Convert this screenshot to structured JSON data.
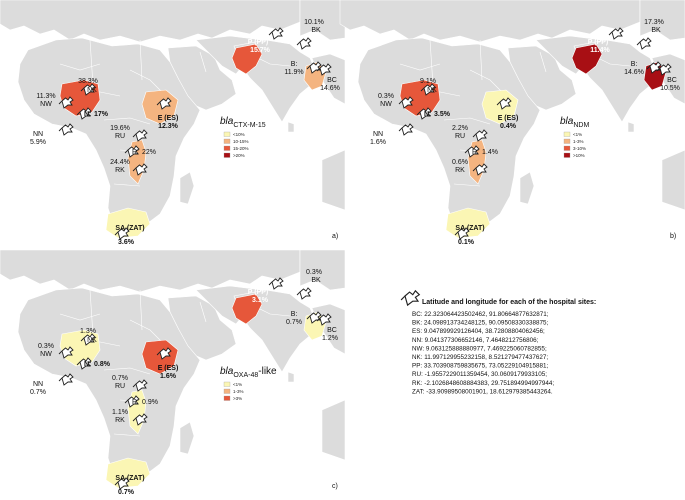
{
  "colors": {
    "land": "#dcdcdc",
    "cat1": "#fbf6b4",
    "cat2": "#f4b480",
    "cat3": "#e6573a",
    "cat4": "#a80f14"
  },
  "panels": [
    {
      "id": "a",
      "panel_label": "a)",
      "gene_prefix": "bla",
      "gene_sub": "CTX-M-15",
      "legend": [
        "<10%",
        "10-15%",
        "15-20%",
        ">20%"
      ],
      "regions": {
        "nigeria": "cat3",
        "ethiopia": "cat2",
        "pakistan": "cat3",
        "bangladesh": "cat2",
        "rwanda": "cat2",
        "southafrica": "cat1"
      },
      "sites": {
        "NK": {
          "pct": "38.3%",
          "code": "NK"
        },
        "NW": {
          "pct": "11.3%",
          "code": "NW"
        },
        "N": {
          "pct": "17%",
          "code": "N:"
        },
        "NN": {
          "pct": "5.9%",
          "code": "NN"
        },
        "E": {
          "pct": "12.3%",
          "code": "E (ES)"
        },
        "RU": {
          "pct": "19.6%",
          "code": "RU"
        },
        "R": {
          "pct": "22%",
          "code": "R:"
        },
        "RK": {
          "pct": "24.4%",
          "code": "RK"
        },
        "SA": {
          "pct": "3.6%",
          "code": "SA (ZAT)"
        },
        "P": {
          "pct": "15.7%",
          "code": "P (PP)"
        },
        "BK": {
          "pct": "10.1%",
          "code": "BK"
        },
        "B": {
          "pct": "11.9%",
          "code": "B:"
        },
        "BC": {
          "pct": "14.6%",
          "code": "BC"
        }
      }
    },
    {
      "id": "b",
      "panel_label": "b)",
      "gene_prefix": "bla",
      "gene_sub": "NDM",
      "legend": [
        "<1%",
        "1-3%",
        "3-10%",
        ">10%"
      ],
      "regions": {
        "nigeria": "cat3",
        "ethiopia": "cat1",
        "pakistan": "cat4",
        "bangladesh": "cat4",
        "rwanda": "cat2",
        "southafrica": "cat1"
      },
      "sites": {
        "NK": {
          "pct": "9.1%",
          "code": "NK"
        },
        "NW": {
          "pct": "0.3%",
          "code": "NW"
        },
        "N": {
          "pct": "3.5%",
          "code": "N:"
        },
        "NN": {
          "pct": "1.6%",
          "code": "NN"
        },
        "E": {
          "pct": "0.4%",
          "code": "E (ES)"
        },
        "RU": {
          "pct": "2.2%",
          "code": "RU"
        },
        "R": {
          "pct": "1.4%",
          "code": "R:"
        },
        "RK": {
          "pct": "0.6%",
          "code": "RK"
        },
        "SA": {
          "pct": "0.1%",
          "code": "SA (ZAT)"
        },
        "P": {
          "pct": "11.4%",
          "code": "P (PP)"
        },
        "BK": {
          "pct": "17.3%",
          "code": "BK"
        },
        "B": {
          "pct": "14.6%",
          "code": "B:"
        },
        "BC": {
          "pct": "10.5%",
          "code": "BC"
        }
      }
    },
    {
      "id": "c",
      "panel_label": "c)",
      "gene_prefix": "bla",
      "gene_sub": "OXA-48",
      "gene_suffix": "-like",
      "legend": [
        "<1%",
        "1-3%",
        ">3%"
      ],
      "regions": {
        "nigeria": "cat1",
        "ethiopia": "cat3",
        "pakistan": "cat3",
        "bangladesh": "cat1",
        "rwanda": "cat1",
        "southafrica": "cat1"
      },
      "sites": {
        "NK": {
          "pct": "1.3%",
          "code": "NK"
        },
        "NW": {
          "pct": "0.3%",
          "code": "NW"
        },
        "N": {
          "pct": "0.8%",
          "code": "N:"
        },
        "NN": {
          "pct": "0.7%",
          "code": "NN"
        },
        "E": {
          "pct": "1.6%",
          "code": "E (ES)"
        },
        "RU": {
          "pct": "0.7%",
          "code": "RU"
        },
        "R": {
          "pct": "0.9%",
          "code": "R:"
        },
        "RK": {
          "pct": "1.1%",
          "code": "RK"
        },
        "SA": {
          "pct": "0.7%",
          "code": "SA (ZAT)"
        },
        "P": {
          "pct": "3.1%",
          "code": "P (PP)"
        },
        "BK": {
          "pct": "0.3%",
          "code": "BK"
        },
        "B": {
          "pct": "0.7%",
          "code": "B:"
        },
        "BC": {
          "pct": "1.2%",
          "code": "BC"
        }
      }
    }
  ],
  "info": {
    "title": "Latitude and longitude for each of the hospital sites:",
    "lines": [
      "BC: 22.323064423502462, 91.80664877632871;",
      "BK: 24.098913734248125, 90.09508330338875;",
      "ES: 9.047899929126404, 38.72808804062456;",
      "NN: 9.041377306652146, 7.4648212756806;",
      "NW: 9.063125888880977, 7.469225060782855;",
      "NK: 11.997129955232158, 8.521279477437627;",
      "PP: 33.703908759835675, 73.05229104915881;",
      "RU: -1.9557229011359454, 30.0609179933105;",
      "RK: -2.1026848608884383, 29.751894994997944;",
      "ZAT: -33.90989508001901, 18.612979385443264."
    ]
  }
}
